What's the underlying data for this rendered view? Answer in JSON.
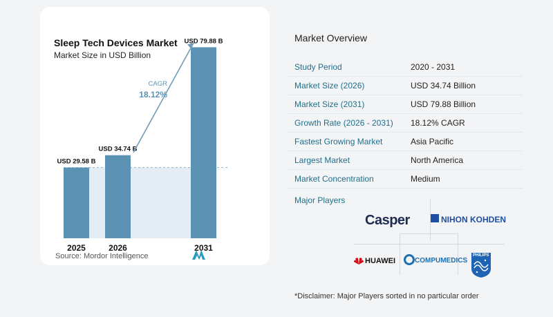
{
  "chart": {
    "title": "Sleep Tech Devices Market",
    "subtitle": "Market Size in USD Billion",
    "cagr_label": "CAGR",
    "cagr_value": "18.12%",
    "source": "Source:  Mordor Intelligence"
  },
  "chart_data": {
    "type": "bar",
    "categories": [
      "2025",
      "2026",
      "2031"
    ],
    "values": [
      29.58,
      34.74,
      79.88
    ],
    "value_labels": [
      "USD 29.58 B",
      "USD 34.74 B",
      "USD 79.88 B"
    ],
    "title": "Sleep Tech Devices Market",
    "subtitle": "Market Size in USD Billion",
    "xlabel": "",
    "ylabel": "",
    "ylim": [
      0,
      80
    ],
    "grid": false
  },
  "overview": {
    "title": "Market Overview",
    "rows": [
      {
        "k": "Study Period",
        "v": "2020 - 2031"
      },
      {
        "k": "Market Size (2026)",
        "v": "USD 34.74 Billion"
      },
      {
        "k": "Market Size (2031)",
        "v": "USD 79.88 Billion"
      },
      {
        "k": "Growth Rate (2026 - 2031)",
        "v": "18.12% CAGR"
      },
      {
        "k": "Fastest Growing Market",
        "v": "Asia Pacific"
      },
      {
        "k": "Largest Market",
        "v": "North America"
      },
      {
        "k": "Market Concentration",
        "v": "Medium"
      }
    ],
    "players_title": "Major Players",
    "players": [
      "Casper",
      "NIHON KOHDEN",
      "HUAWEI",
      "COMPUMEDICS",
      "PHILIPS"
    ],
    "disclaimer": "*Disclaimer: Major Players sorted in no particular order"
  },
  "colors": {
    "bar": "#5b92b4",
    "bar_light": "#e3edf3",
    "accent": "#1f6f8b"
  }
}
